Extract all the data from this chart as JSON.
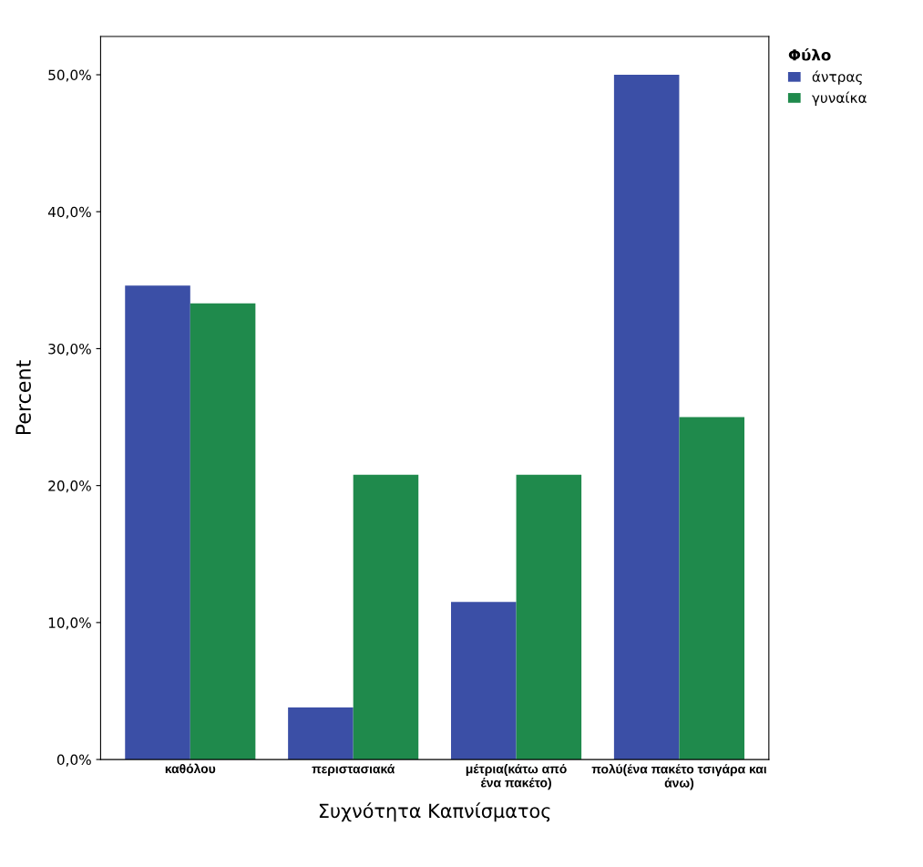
{
  "chart_data": {
    "type": "bar",
    "xlabel": "Συχνότητα Καπνίσματος",
    "ylabel": "Percent",
    "legend_title": "Φύλο",
    "categories": [
      "καθόλου",
      "περιστασιακά",
      "μέτρια(κάτω από\nένα πακέτο)",
      "πολύ(ένα πακέτο τσιγάρα και\nάνω)"
    ],
    "series": [
      {
        "name": "άντρας",
        "color": "#3b4fa6",
        "values": [
          34.6,
          3.8,
          11.5,
          50.0
        ]
      },
      {
        "name": "γυναίκα",
        "color": "#1f8a4c",
        "values": [
          33.3,
          20.8,
          20.8,
          25.0
        ]
      }
    ],
    "ylim": [
      0,
      52.8
    ],
    "yticks": [
      {
        "value": 0,
        "label": "0,0%"
      },
      {
        "value": 10,
        "label": "10,0%"
      },
      {
        "value": 20,
        "label": "20,0%"
      },
      {
        "value": 30,
        "label": "30,0%"
      },
      {
        "value": 40,
        "label": "40,0%"
      },
      {
        "value": 50,
        "label": "50,0%"
      }
    ],
    "legend": "top right",
    "grid": false
  }
}
